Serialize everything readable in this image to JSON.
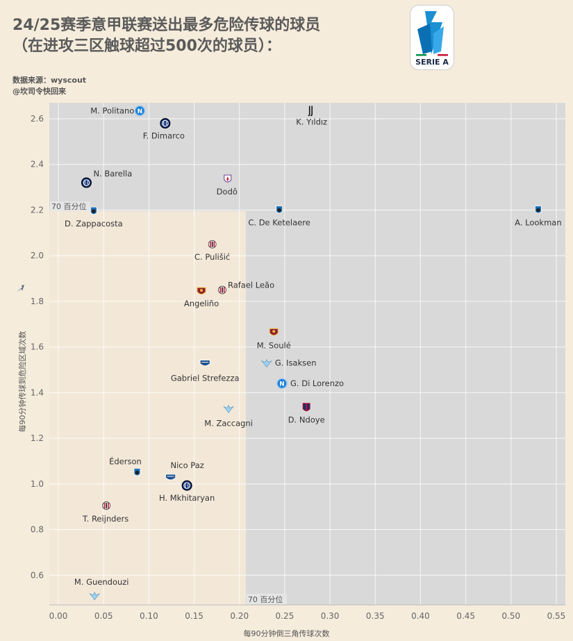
{
  "title_line1": "24/25赛季意甲联赛送出最多危险传球的球员",
  "title_line2": "（在进攻三区触球超过500次的球员）：",
  "source_line1": "数据来源：wyscout",
  "source_line2": "@坎司令快回来",
  "logo_text": "SERIE A",
  "colors": {
    "background": "#f5ecdc",
    "grey_area": "#d9d9d9",
    "beige_area": "#f3e8d8",
    "grid": "#ffffff"
  },
  "chart_data": {
    "type": "scatter",
    "title": "",
    "xlabel": "每90分钟倒三角传球次数",
    "ylabel": "每90分钟传球到危险区域次数",
    "xlim": [
      -0.01,
      0.56
    ],
    "ylim": [
      0.47,
      2.67
    ],
    "xticks": [
      0.0,
      0.05,
      0.1,
      0.15,
      0.2,
      0.25,
      0.3,
      0.35,
      0.4,
      0.45,
      0.5,
      0.55
    ],
    "xtick_labels": [
      "0.00",
      "0.05",
      "0.10",
      "0.15",
      "0.20",
      "0.25",
      "0.30",
      "0.35",
      "0.40",
      "0.45",
      "0.50",
      "0.55"
    ],
    "yticks": [
      0.6,
      0.8,
      1.0,
      1.2,
      1.4,
      1.6,
      1.8,
      2.0,
      2.2,
      2.4,
      2.6
    ],
    "ytick_labels": [
      "0.6",
      "0.8",
      "1.0",
      "1.2",
      "1.4",
      "1.6",
      "1.8",
      "2.0",
      "2.2",
      "2.4",
      "2.6"
    ],
    "grid": true,
    "x_70th_percentile": 0.207,
    "y_70th_percentile": 2.195,
    "percentile_label": "70 百分位",
    "players": [
      {
        "name": "M. Politano",
        "club": "napoli",
        "x": 0.09,
        "y": 2.635
      },
      {
        "name": "F. Dimarco",
        "club": "inter",
        "x": 0.118,
        "y": 2.58
      },
      {
        "name": "K. Yıldız",
        "club": "juventus",
        "x": 0.279,
        "y": 2.635
      },
      {
        "name": "N. Barella",
        "club": "inter",
        "x": 0.031,
        "y": 2.32
      },
      {
        "name": "Dodô",
        "club": "fiorentina",
        "x": 0.187,
        "y": 2.335
      },
      {
        "name": "D. Zappacosta",
        "club": "atalanta",
        "x": 0.039,
        "y": 2.195
      },
      {
        "name": "C. De Ketelaere",
        "club": "atalanta",
        "x": 0.244,
        "y": 2.2
      },
      {
        "name": "A. Lookman",
        "club": "atalanta",
        "x": 0.53,
        "y": 2.2
      },
      {
        "name": "C. Pulišić",
        "club": "milan",
        "x": 0.17,
        "y": 2.05
      },
      {
        "name": "Rafael Leão",
        "club": "milan",
        "x": 0.181,
        "y": 1.85
      },
      {
        "name": "Angeliño",
        "club": "roma",
        "x": 0.158,
        "y": 1.845
      },
      {
        "name": "M. Soulé",
        "club": "roma",
        "x": 0.238,
        "y": 1.665
      },
      {
        "name": "G. Isaksen",
        "club": "lazio",
        "x": 0.23,
        "y": 1.53
      },
      {
        "name": "Gabriel Strefezza",
        "club": "como",
        "x": 0.162,
        "y": 1.53
      },
      {
        "name": "G. Di Lorenzo",
        "club": "napoli",
        "x": 0.247,
        "y": 1.44
      },
      {
        "name": "D. Ndoye",
        "club": "bologna",
        "x": 0.274,
        "y": 1.335
      },
      {
        "name": "M. Zaccagni",
        "club": "lazio",
        "x": 0.188,
        "y": 1.33
      },
      {
        "name": "Éderson",
        "club": "atalanta",
        "x": 0.087,
        "y": 1.05
      },
      {
        "name": "Nico Paz",
        "club": "como",
        "x": 0.124,
        "y": 1.03
      },
      {
        "name": "H. Mkhitaryan",
        "club": "inter",
        "x": 0.142,
        "y": 0.993
      },
      {
        "name": "T. Reijnders",
        "club": "milan",
        "x": 0.053,
        "y": 0.905
      },
      {
        "name": "M. Guendouzi",
        "club": "lazio",
        "x": 0.04,
        "y": 0.51
      }
    ]
  }
}
